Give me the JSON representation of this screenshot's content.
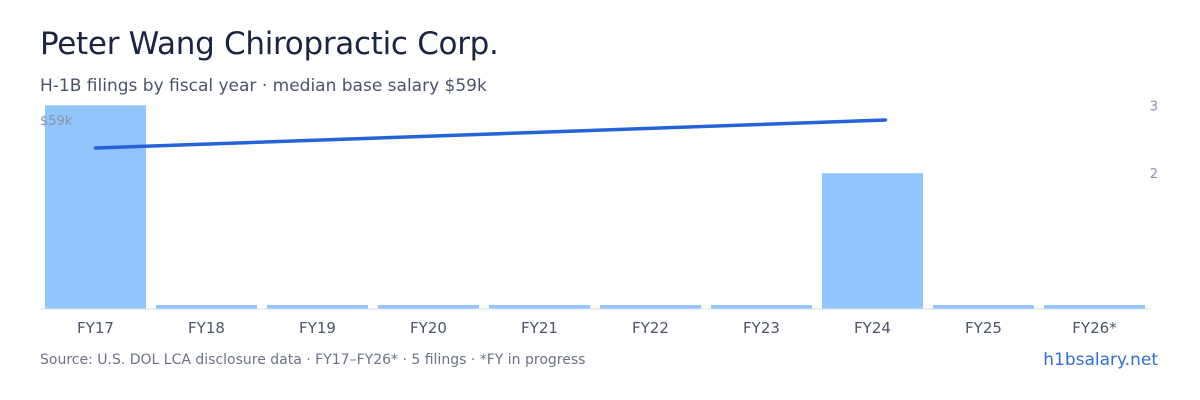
{
  "header": {
    "title": "Peter Wang Chiropractic Corp.",
    "subtitle": "H-1B filings by fiscal year · median base salary $59k"
  },
  "footer": {
    "source": "Source: U.S. DOL LCA disclosure data · FY17–FY26* · 5 filings · *FY in progress",
    "brand": "h1bsalary.net"
  },
  "colors": {
    "bar": "#93c5fd",
    "line": "#2563d9",
    "axis_text": "#8a93a6",
    "baseline": "#d9dde5"
  },
  "chart_data": {
    "type": "bar",
    "categories": [
      "FY17",
      "FY18",
      "FY19",
      "FY20",
      "FY21",
      "FY22",
      "FY23",
      "FY24",
      "FY25",
      "FY26*"
    ],
    "series": [
      {
        "values": [
          3,
          0,
          0,
          0,
          0,
          0,
          0,
          2,
          0,
          0
        ]
      }
    ],
    "right_axis": {
      "ticks": [
        "3",
        "2"
      ],
      "tick_values": [
        3,
        2
      ],
      "range": [
        0,
        3.35
      ]
    },
    "left_axis_label": "$59k",
    "salary_line": {
      "type": "line",
      "points": [
        {
          "x": "FY17",
          "y": 56
        },
        {
          "x": "FY24",
          "y": 59
        }
      ]
    }
  }
}
